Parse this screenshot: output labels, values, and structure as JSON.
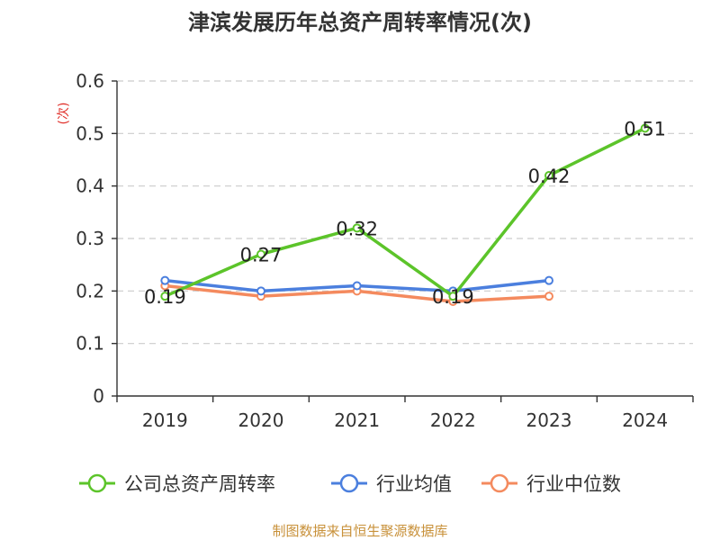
{
  "chart_data": {
    "type": "line",
    "title": "津滨发展历年总资产周转率情况(次)",
    "ylabel": "(次)",
    "categories": [
      "2019",
      "2020",
      "2021",
      "2022",
      "2023",
      "2024"
    ],
    "yticks": [
      "0",
      "0.1",
      "0.2",
      "0.3",
      "0.4",
      "0.5",
      "0.6"
    ],
    "ylim": [
      0,
      0.6
    ],
    "grid": true,
    "legend_position": "bottom",
    "series": [
      {
        "name": "公司总资产周转率",
        "color": "#5cc42a",
        "values": [
          0.19,
          0.27,
          0.32,
          0.19,
          0.42,
          0.51
        ],
        "labels": [
          "0.19",
          "0.27",
          "0.32",
          "0.19",
          "0.42",
          "0.51"
        ]
      },
      {
        "name": "行业均值",
        "color": "#4b7fde",
        "values": [
          0.22,
          0.2,
          0.21,
          0.2,
          0.22,
          null
        ]
      },
      {
        "name": "行业中位数",
        "color": "#f48a5e",
        "values": [
          0.21,
          0.19,
          0.2,
          0.18,
          0.19,
          null
        ]
      }
    ]
  },
  "source_text": "制图数据来自恒生聚源数据库"
}
